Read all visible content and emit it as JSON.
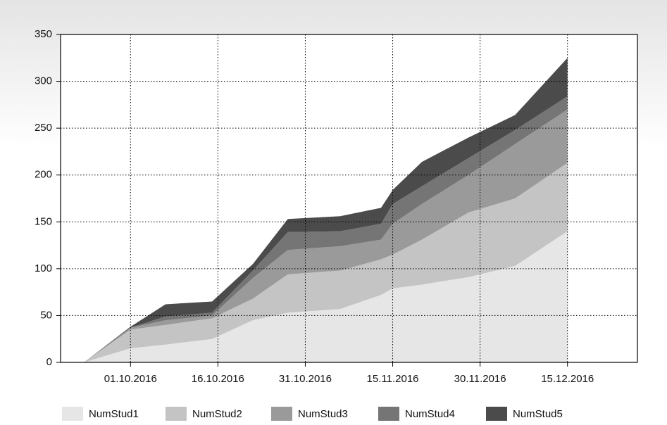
{
  "chart_data": {
    "type": "stacked-area",
    "x": [
      "2016-09-23",
      "2016-10-01",
      "2016-10-07",
      "2016-10-15",
      "2016-10-22",
      "2016-10-28",
      "2016-11-06",
      "2016-11-13",
      "2016-11-15",
      "2016-11-20",
      "2016-11-28",
      "2016-12-06",
      "2016-12-15"
    ],
    "series": [
      {
        "name": "NumStud1",
        "color": "#e6e6e6",
        "values": [
          0,
          15,
          19,
          25,
          45,
          53,
          57,
          72,
          79,
          83,
          91,
          103,
          140
        ]
      },
      {
        "name": "NumStud2",
        "color": "#c4c4c4",
        "values": [
          0,
          20,
          21,
          22,
          23,
          41,
          41,
          38,
          36,
          48,
          69,
          72,
          73
        ]
      },
      {
        "name": "NumStud3",
        "color": "#9a9a9a",
        "values": [
          0,
          2,
          5,
          3,
          22,
          26,
          26,
          21,
          33,
          38,
          40,
          58,
          57
        ]
      },
      {
        "name": "NumStud4",
        "color": "#757575",
        "values": [
          0,
          0,
          4,
          3,
          8,
          19,
          16,
          17,
          21,
          19,
          18,
          15,
          14
        ]
      },
      {
        "name": "NumStud5",
        "color": "#4b4b4b",
        "values": [
          0,
          1,
          13,
          12,
          7,
          14,
          16,
          17,
          15,
          26,
          22,
          16,
          41
        ]
      }
    ],
    "xlim": [
      "2016-09-19",
      "2016-12-27"
    ],
    "xticks": [
      {
        "value": "2016-10-01",
        "label": "01.10.2016"
      },
      {
        "value": "2016-10-16",
        "label": "16.10.2016"
      },
      {
        "value": "2016-10-31",
        "label": "31.10.2016"
      },
      {
        "value": "2016-11-15",
        "label": "15.11.2016"
      },
      {
        "value": "2016-11-30",
        "label": "30.11.2016"
      },
      {
        "value": "2016-12-15",
        "label": "15.12.2016"
      }
    ],
    "ylim": [
      0,
      350
    ],
    "yticks": [
      0,
      50,
      100,
      150,
      200,
      250,
      300,
      350
    ],
    "grid": true,
    "legend": "bottom"
  }
}
